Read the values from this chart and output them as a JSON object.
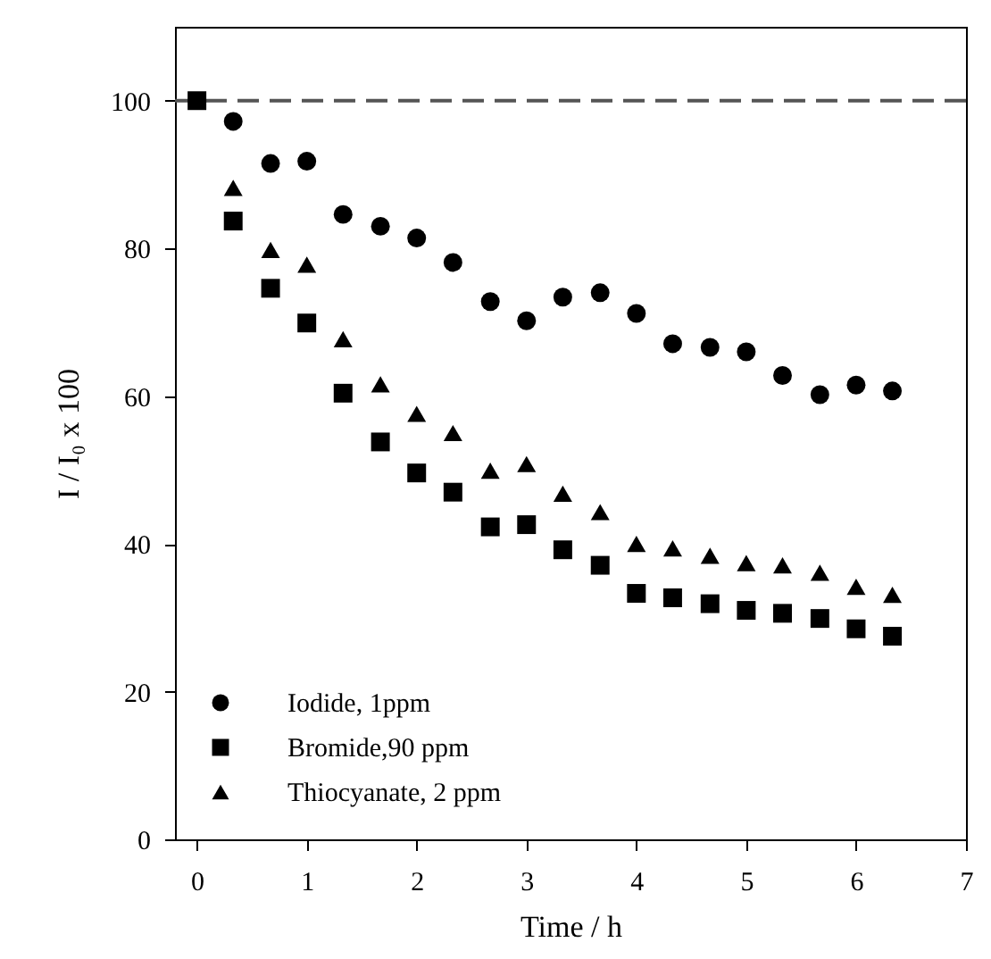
{
  "chart_data": {
    "type": "scatter",
    "xlabel": "Time / h",
    "ylabel": "I / I₀ x 100",
    "x": [
      0,
      0.33,
      0.67,
      1,
      1.33,
      1.67,
      2,
      2.33,
      2.67,
      3,
      3.33,
      3.67,
      4,
      4.33,
      4.67,
      5,
      5.33,
      5.67,
      6,
      6.33
    ],
    "series": [
      {
        "name": "Iodide, 1ppm",
        "color": "#000000",
        "marker": "circle",
        "values": [
          null,
          97.2,
          91.5,
          91.8,
          84.6,
          83.0,
          81.4,
          78.1,
          72.8,
          70.2,
          73.4,
          74.0,
          71.2,
          67.1,
          66.6,
          66.0,
          62.8,
          60.2,
          61.5,
          60.7
        ]
      },
      {
        "name": "Bromide,90 ppm",
        "color": "#000000",
        "marker": "square",
        "values": [
          100,
          83.7,
          74.6,
          69.9,
          60.4,
          53.8,
          49.6,
          47.0,
          42.3,
          42.6,
          39.2,
          37.1,
          33.3,
          32.7,
          31.9,
          31.0,
          30.6,
          29.9,
          28.5,
          27.5
        ]
      },
      {
        "name": "Thiocyanate, 2 ppm",
        "color": "#000000",
        "marker": "triangle",
        "values": [
          null,
          88.2,
          79.8,
          77.8,
          67.7,
          61.6,
          57.6,
          55.0,
          49.9,
          50.8,
          46.8,
          44.3,
          40.0,
          39.4,
          38.4,
          37.4,
          37.1,
          36.1,
          34.2,
          33.1
        ]
      }
    ],
    "xlim": [
      -0.2,
      7
    ],
    "xticks": [
      0,
      1,
      2,
      3,
      4,
      5,
      6,
      7
    ],
    "ylim": [
      0,
      110
    ],
    "yticks": [
      0,
      20,
      40,
      60,
      80,
      100
    ],
    "ref_lines": [
      {
        "axis": "y",
        "value": 100,
        "color": "#555555",
        "line_style": "dashed"
      }
    ],
    "legend": "bottom left"
  }
}
